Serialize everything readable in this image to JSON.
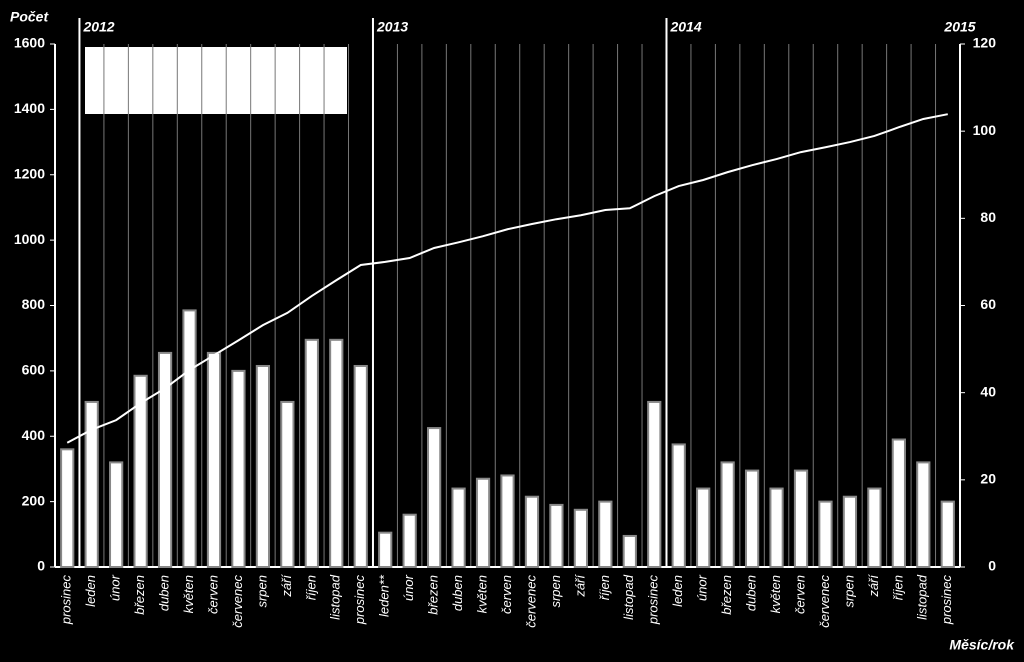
{
  "chart_data": {
    "type": "bar",
    "y_label": "Počet",
    "x_label": "Měsíc/rok",
    "categories": [
      "prosinec",
      "leden",
      "únor",
      "březen",
      "duben",
      "květen",
      "červen",
      "červenec",
      "srpen",
      "září",
      "říjen",
      "listopad",
      "prosinec",
      "leden**",
      "únor",
      "březen",
      "duben",
      "květen",
      "červen",
      "červenec",
      "srpen",
      "září",
      "říjen",
      "listopad",
      "prosinec",
      "leden",
      "únor",
      "březen",
      "duben",
      "květen",
      "červen",
      "červenec",
      "srpen",
      "září",
      "říjen",
      "listopad",
      "prosinec"
    ],
    "series": [
      {
        "type": "bar",
        "color": "#ffffff",
        "values": [
          360,
          505,
          320,
          585,
          655,
          785,
          655,
          600,
          615,
          505,
          695,
          695,
          615,
          105,
          160,
          425,
          240,
          270,
          280,
          215,
          190,
          175,
          200,
          95,
          505,
          375,
          240,
          320,
          295,
          240,
          295,
          200,
          215,
          240,
          390,
          320,
          200
        ]
      },
      {
        "type": "line",
        "axis": "y2",
        "color": "#ffffff",
        "values": [
          28.5,
          31.5,
          33.7,
          37.6,
          41,
          45.2,
          48.6,
          52,
          55.5,
          58.3,
          62.2,
          65.8,
          69.3,
          70,
          70.9,
          73.2,
          74.5,
          75.9,
          77.5,
          78.7,
          79.8,
          80.7,
          81.9,
          82.3,
          85.1,
          87.4,
          88.8,
          90.6,
          92.2,
          93.6,
          95.2,
          96.3,
          97.5,
          98.9,
          100.9,
          102.8,
          103.9
        ]
      }
    ],
    "year_markers": [
      {
        "label": "2012",
        "category_index": 1
      },
      {
        "label": "2013",
        "category_index": 13
      },
      {
        "label": "2014",
        "category_index": 25
      },
      {
        "label": "2015",
        "category_index": 37
      }
    ],
    "ylim": [
      0,
      1600
    ],
    "yticks": [
      0,
      200,
      400,
      600,
      800,
      1000,
      1200,
      1400,
      1600
    ],
    "y2lim": [
      0,
      120
    ],
    "y2ticks": [
      0,
      20,
      40,
      60,
      80,
      100,
      120
    ],
    "vertical_grid": true
  }
}
